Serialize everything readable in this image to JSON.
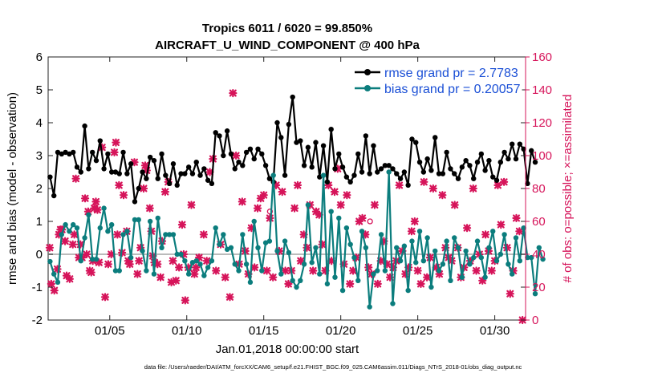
{
  "chart_data": {
    "type": "line",
    "title": "Tropics 6011 / 6020 = 99.850%",
    "subtitle": "AIRCRAFT_U_WIND_COMPONENT @ 400 hPa",
    "xlabel": "Jan.01,2018 00:00:00 start",
    "ylabel": "rmse and bias (model - observation)",
    "y2label": "# of obs: o=possible; ×=assimilated",
    "xlim": [
      1,
      32
    ],
    "ylim": [
      -2,
      6
    ],
    "y2lim": [
      0,
      160
    ],
    "xticks": [
      5,
      10,
      15,
      20,
      25,
      30
    ],
    "xtick_labels": [
      "01/05",
      "01/10",
      "01/15",
      "01/20",
      "01/25",
      "01/30"
    ],
    "yticks": [
      -2,
      -1,
      0,
      1,
      2,
      3,
      4,
      5,
      6
    ],
    "ytick_labels": [
      "-2",
      "-1",
      "0",
      "1",
      "2",
      "3",
      "4",
      "5",
      "6"
    ],
    "y2ticks": [
      0,
      20,
      40,
      60,
      80,
      100,
      120,
      140,
      160
    ],
    "y2tick_labels": [
      "0",
      "20",
      "40",
      "60",
      "80",
      "100",
      "120",
      "140",
      "160"
    ],
    "footnote": "data file: /Users/raeder/DAI/ATM_forcXX/CAM6_setup/f.e21.FHIST_BGC.f09_025.CAM6assim.011/Diags_NTrS_2018-01/obs_diag_output.nc",
    "colors": {
      "rmse": "#000000",
      "bias": "#0b7d7d",
      "obs": "#d6145a",
      "zero": "#bbbbbb",
      "right_axis": "#d6145a"
    },
    "series": [
      {
        "name": "rmse grand pr = 2.7783",
        "axis": "left",
        "x_start": 1.125,
        "x_step": 0.25,
        "values": [
          2.35,
          1.78,
          3.1,
          3.05,
          3.1,
          3.05,
          3.1,
          2.65,
          2.5,
          3.9,
          2.6,
          3.1,
          2.85,
          3.45,
          2.6,
          3.05,
          2.5,
          2.5,
          2.45,
          3.1,
          2.45,
          2.75,
          1.6,
          2.0,
          2.5,
          2.3,
          2.95,
          2.85,
          2.3,
          3.05,
          2.4,
          2.15,
          2.75,
          2.1,
          2.45,
          2.45,
          2.65,
          2.45,
          2.8,
          2.4,
          2.6,
          2.25,
          2.15,
          3.7,
          3.6,
          3.0,
          3.75,
          3.05,
          2.6,
          2.8,
          2.7,
          3.1,
          3.2,
          2.9,
          3.2,
          3.05,
          2.7,
          2.3,
          2.2,
          4.0,
          3.55,
          2.4,
          3.95,
          4.78,
          3.4,
          3.45,
          2.7,
          3.25,
          2.65,
          3.4,
          2.35,
          3.3,
          2.2,
          3.8,
          2.6,
          3.05,
          2.65,
          2.35,
          2.2,
          2.4,
          3.05,
          2.5,
          3.6,
          2.45,
          3.3,
          2.5,
          2.6,
          2.7,
          2.7,
          2.6,
          2.45,
          2.3,
          2.5,
          2.1,
          3.5,
          3.4,
          2.8,
          2.5,
          2.9,
          2.55,
          3.55,
          2.45,
          2.45,
          3.1,
          2.6,
          2.45,
          2.3,
          2.65,
          2.85,
          2.7,
          2.3,
          2.8,
          3.05,
          2.55,
          2.85,
          2.35,
          2.25,
          2.8,
          3.1,
          2.9,
          3.35,
          2.9,
          3.35,
          3.2,
          2.15,
          3.15,
          2.8
        ]
      },
      {
        "name": "bias grand pr = 0.20057",
        "axis": "left",
        "x_start": 1.125,
        "x_step": 0.25,
        "values": [
          -0.22,
          -0.6,
          -0.85,
          0.6,
          0.9,
          0.7,
          0.9,
          0.8,
          -0.2,
          0.5,
          1.2,
          -0.15,
          -0.15,
          0.8,
          1.4,
          0.7,
          0.9,
          -0.5,
          -0.5,
          0.6,
          0.7,
          -0.1,
          1.05,
          1.05,
          0.1,
          -0.5,
          1.0,
          -0.6,
          1.1,
          0.2,
          0.6,
          0.6,
          0.6,
          0.0,
          0.0,
          -0.2,
          -0.6,
          -0.25,
          -0.2,
          -0.3,
          -0.65,
          -0.4,
          -0.2,
          0.8,
          0.3,
          0.6,
          0.15,
          0.2,
          -0.3,
          -0.5,
          0.6,
          -0.3,
          -0.85,
          1.0,
          0.2,
          -0.5,
          0.35,
          0.4,
          2.4,
          0.1,
          -0.6,
          0.4,
          0.05,
          -0.8,
          -1.0,
          -0.8,
          -0.3,
          1.5,
          -0.25,
          0.2,
          -0.6,
          2.4,
          -0.9,
          1.3,
          -0.7,
          1.1,
          -1.1,
          0.8,
          0.3,
          -0.1,
          -0.8,
          0.7,
          0.2,
          -1.6,
          -0.6,
          -0.5,
          0.6,
          -0.5,
          2.5,
          -1.5,
          0.2,
          -0.2,
          0.25,
          -1.1,
          0.4,
          -0.25,
          0.7,
          -0.2,
          0.5,
          -1.0,
          0.1,
          -0.5,
          -0.3,
          0.4,
          -0.8,
          0.5,
          0.2,
          -0.7,
          0.1,
          -0.3,
          -0.1,
          0.4,
          -0.1,
          -0.7,
          0.2,
          0.7,
          -0.2,
          0.0,
          0.6,
          -0.3,
          -0.6,
          0.5,
          -0.2,
          0.8,
          -0.1,
          -0.1,
          -1.2,
          0.2,
          -0.15
        ]
      },
      {
        "name": "obs assimilated",
        "axis": "right",
        "marker": "x",
        "points": [
          [
            1.1,
            44
          ],
          [
            1.2,
            22
          ],
          [
            1.4,
            18
          ],
          [
            1.6,
            31
          ],
          [
            1.7,
            52
          ],
          [
            1.8,
            55
          ],
          [
            1.9,
            55
          ],
          [
            2.1,
            48
          ],
          [
            2.2,
            27
          ],
          [
            2.4,
            25
          ],
          [
            2.6,
            46
          ],
          [
            2.7,
            52
          ],
          [
            2.8,
            86
          ],
          [
            3.0,
            38
          ],
          [
            3.1,
            46
          ],
          [
            3.2,
            38
          ],
          [
            3.4,
            74
          ],
          [
            3.5,
            40
          ],
          [
            3.6,
            66
          ],
          [
            3.7,
            30
          ],
          [
            3.8,
            29
          ],
          [
            3.9,
            36
          ],
          [
            4.0,
            68
          ],
          [
            4.1,
            72
          ],
          [
            4.2,
            67
          ],
          [
            4.3,
            35
          ],
          [
            4.5,
            105
          ],
          [
            4.7,
            14
          ],
          [
            4.9,
            34
          ],
          [
            5.1,
            40
          ],
          [
            5.3,
            102
          ],
          [
            5.4,
            108
          ],
          [
            5.5,
            52
          ],
          [
            5.6,
            82
          ],
          [
            5.8,
            41
          ],
          [
            5.9,
            76
          ],
          [
            6.1,
            54
          ],
          [
            6.2,
            36
          ],
          [
            6.3,
            34
          ],
          [
            6.6,
            96
          ],
          [
            6.8,
            28
          ],
          [
            6.9,
            36
          ],
          [
            7.0,
            44
          ],
          [
            7.2,
            80
          ],
          [
            7.3,
            94
          ],
          [
            7.4,
            91
          ],
          [
            7.6,
            68
          ],
          [
            7.7,
            54
          ],
          [
            7.8,
            39
          ],
          [
            7.9,
            35
          ],
          [
            8.1,
            34
          ],
          [
            8.3,
            26
          ],
          [
            8.4,
            48
          ],
          [
            8.6,
            78
          ],
          [
            8.8,
            84
          ],
          [
            9.0,
            23
          ],
          [
            9.1,
            36
          ],
          [
            9.3,
            24
          ],
          [
            9.5,
            32
          ],
          [
            9.7,
            58
          ],
          [
            9.8,
            40
          ],
          [
            9.9,
            12
          ],
          [
            10.1,
            32
          ],
          [
            10.3,
            70
          ],
          [
            10.5,
            28
          ],
          [
            10.6,
            32
          ],
          [
            10.8,
            38
          ],
          [
            11.1,
            52
          ],
          [
            11.3,
            36
          ],
          [
            11.5,
            90
          ],
          [
            11.7,
            98
          ],
          [
            11.9,
            30
          ],
          [
            12.2,
            46
          ],
          [
            12.5,
            26
          ],
          [
            12.8,
            14
          ],
          [
            13.0,
            138
          ],
          [
            13.2,
            100
          ],
          [
            13.4,
            34
          ],
          [
            13.6,
            72
          ],
          [
            13.8,
            42
          ],
          [
            14.0,
            28
          ],
          [
            14.2,
            56
          ],
          [
            14.4,
            32
          ],
          [
            14.6,
            68
          ],
          [
            14.8,
            74
          ],
          [
            15.0,
            76
          ],
          [
            15.2,
            30
          ],
          [
            15.4,
            62
          ],
          [
            15.6,
            26
          ],
          [
            15.8,
            82
          ],
          [
            16.0,
            42
          ],
          [
            16.2,
            78
          ],
          [
            16.4,
            30
          ],
          [
            16.6,
            22
          ],
          [
            16.8,
            30
          ],
          [
            17.0,
            68
          ],
          [
            17.2,
            82
          ],
          [
            17.4,
            36
          ],
          [
            17.6,
            52
          ],
          [
            17.8,
            44
          ],
          [
            18.0,
            70
          ],
          [
            18.2,
            30
          ],
          [
            18.4,
            66
          ],
          [
            18.6,
            64
          ],
          [
            18.8,
            46
          ],
          [
            19.0,
            30
          ],
          [
            19.2,
            82
          ],
          [
            19.4,
            36
          ],
          [
            19.6,
            78
          ],
          [
            19.8,
            92
          ],
          [
            20.0,
            70
          ],
          [
            20.2,
            34
          ],
          [
            20.4,
            76
          ],
          [
            20.6,
            22
          ],
          [
            20.8,
            30
          ],
          [
            21.0,
            38
          ],
          [
            21.2,
            60
          ],
          [
            21.4,
            62
          ],
          [
            21.6,
            52
          ],
          [
            21.8,
            32
          ],
          [
            22.0,
            28
          ],
          [
            22.2,
            70
          ],
          [
            22.4,
            22
          ],
          [
            22.6,
            36
          ],
          [
            22.8,
            48
          ],
          [
            23.0,
            34
          ],
          [
            23.2,
            26
          ],
          [
            23.4,
            32
          ],
          [
            23.6,
            36
          ],
          [
            23.8,
            82
          ],
          [
            24.0,
            42
          ],
          [
            24.2,
            28
          ],
          [
            24.4,
            32
          ],
          [
            24.6,
            54
          ],
          [
            24.8,
            60
          ],
          [
            25.0,
            30
          ],
          [
            25.2,
            22
          ],
          [
            25.4,
            84
          ],
          [
            25.6,
            26
          ],
          [
            25.8,
            38
          ],
          [
            26.0,
            80
          ],
          [
            26.2,
            32
          ],
          [
            26.4,
            28
          ],
          [
            26.6,
            76
          ],
          [
            26.8,
            44
          ],
          [
            27.0,
            38
          ],
          [
            27.2,
            36
          ],
          [
            27.4,
            70
          ],
          [
            27.6,
            44
          ],
          [
            27.8,
            26
          ],
          [
            28.0,
            32
          ],
          [
            28.2,
            56
          ],
          [
            28.4,
            36
          ],
          [
            28.6,
            80
          ],
          [
            28.8,
            30
          ],
          [
            29.0,
            40
          ],
          [
            29.2,
            24
          ],
          [
            29.4,
            52
          ],
          [
            29.6,
            42
          ],
          [
            29.8,
            30
          ],
          [
            30.0,
            36
          ],
          [
            30.2,
            82
          ],
          [
            30.4,
            58
          ],
          [
            30.6,
            84
          ],
          [
            30.8,
            44
          ],
          [
            31.0,
            16
          ],
          [
            31.2,
            30
          ],
          [
            31.4,
            62
          ],
          [
            31.6,
            54
          ],
          [
            31.8,
            0
          ]
        ]
      },
      {
        "name": "obs possible",
        "axis": "right",
        "marker": "o",
        "points": [
          [
            15.4,
            66
          ],
          [
            21.9,
            60
          ]
        ]
      }
    ]
  }
}
